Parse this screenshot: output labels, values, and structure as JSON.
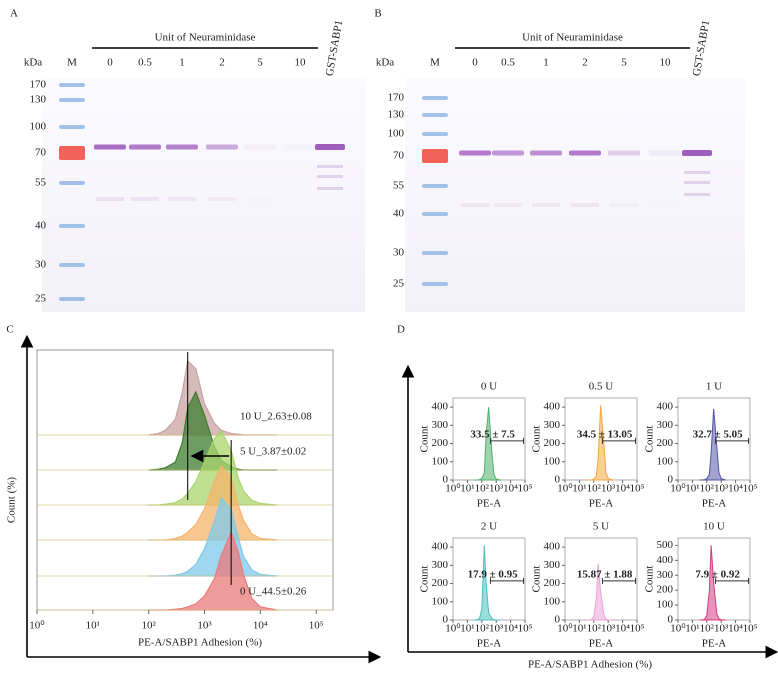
{
  "panels": [
    {
      "label": "A",
      "unit_label": "kDa",
      "marker_label": "M",
      "group_label": "Unit of Neuraminidase",
      "lanes": [
        "0",
        "0.5",
        "1",
        "2",
        "5",
        "10"
      ],
      "control_label": "GST-SABP1",
      "marker_sizes": [
        170,
        130,
        100,
        70,
        55,
        40,
        30,
        25
      ]
    },
    {
      "label": "B",
      "unit_label": "kDa",
      "marker_label": "M",
      "group_label": "Unit of Neuraminidase",
      "lanes": [
        "0",
        "0.5",
        "1",
        "2",
        "5",
        "10"
      ],
      "control_label": "GST-SABP1",
      "marker_sizes": [
        170,
        130,
        100,
        70,
        55,
        40,
        30,
        25
      ]
    }
  ],
  "panel_d": {
    "label": "D",
    "xlabel": "PE-A/SABP1 Adhesion (%)"
  },
  "chart_data": [
    {
      "type": "ridgeline",
      "panel": "C",
      "xlabel": "PE-A/SABP1 Adhesion (%)",
      "ylabel": "Count (%)",
      "xscale": "log",
      "xlim": [
        1,
        200000
      ],
      "xticks": [
        {
          "value": 1,
          "label": "10⁰"
        },
        {
          "value": 10,
          "label": "10¹"
        },
        {
          "value": 100,
          "label": "10²"
        },
        {
          "value": 1000,
          "label": "10³"
        },
        {
          "value": 10000,
          "label": "10⁴"
        },
        {
          "value": 100000,
          "label": "10⁵"
        }
      ],
      "ylim": [
        0,
        100
      ],
      "x": [
        100,
        150,
        200,
        300,
        400,
        500,
        700,
        1000,
        1500,
        2000,
        3000,
        4000,
        5000,
        7000,
        10000,
        20000
      ],
      "series": [
        {
          "name": "10 U_2.63±0.08",
          "color": "#c9a3a3",
          "values": [
            0,
            2,
            6,
            20,
            55,
            95,
            85,
            40,
            15,
            6,
            2,
            1,
            0,
            0,
            0,
            0
          ]
        },
        {
          "name": "5 U_3.87±0.02",
          "color": "#3f7d30",
          "values": [
            0,
            1,
            3,
            10,
            35,
            80,
            100,
            70,
            30,
            12,
            4,
            1,
            0,
            0,
            0,
            0
          ]
        },
        {
          "color": "#a9d46c",
          "values": [
            0,
            0,
            1,
            3,
            8,
            15,
            30,
            55,
            85,
            95,
            70,
            35,
            18,
            6,
            2,
            0
          ]
        },
        {
          "color": "#f6b46c",
          "values": [
            0,
            0,
            0,
            2,
            5,
            10,
            20,
            40,
            75,
            95,
            80,
            45,
            25,
            8,
            2,
            0
          ]
        },
        {
          "color": "#7ec9ea",
          "values": [
            0,
            0,
            0,
            1,
            3,
            6,
            15,
            35,
            70,
            100,
            85,
            50,
            25,
            8,
            2,
            0
          ]
        },
        {
          "name": "0 U_44.5±0.26",
          "color": "#ea7a7a",
          "values": [
            0,
            0,
            0,
            1,
            2,
            4,
            8,
            18,
            40,
            70,
            100,
            75,
            45,
            15,
            4,
            0
          ]
        }
      ]
    },
    {
      "type": "area",
      "title": "0 U",
      "xlabel": "PE-A",
      "ylabel": "Count",
      "xscale": "log",
      "xlim": [
        1,
        100000
      ],
      "xticks": [
        {
          "value": 1,
          "label": "10⁰"
        },
        {
          "value": 10,
          "label": "10¹"
        },
        {
          "value": 100,
          "label": "10²"
        },
        {
          "value": 1000,
          "label": "10³"
        },
        {
          "value": 10000,
          "label": "10⁴"
        },
        {
          "value": 100000,
          "label": "10⁵"
        }
      ],
      "ylim": [
        0,
        450
      ],
      "yticks": [
        0,
        100,
        200,
        300,
        400
      ],
      "x": [
        30,
        50,
        70,
        100,
        150,
        200,
        300,
        500,
        700,
        1000,
        2000
      ],
      "values": [
        0,
        0,
        2,
        8,
        40,
        250,
        400,
        150,
        30,
        5,
        0
      ],
      "color": "#4fb06a",
      "annotation": "33.5 ± 7.5"
    },
    {
      "type": "area",
      "title": "0.5 U",
      "xlabel": "PE-A",
      "ylabel": "Count",
      "xscale": "log",
      "xlim": [
        1,
        100000
      ],
      "xticks": [
        {
          "value": 1,
          "label": "10⁰"
        },
        {
          "value": 10,
          "label": "10¹"
        },
        {
          "value": 100,
          "label": "10²"
        },
        {
          "value": 1000,
          "label": "10³"
        },
        {
          "value": 10000,
          "label": "10⁴"
        },
        {
          "value": 100000,
          "label": "10⁵"
        }
      ],
      "ylim": [
        0,
        450
      ],
      "yticks": [
        0,
        100,
        200,
        300,
        400
      ],
      "x": [
        30,
        50,
        70,
        100,
        150,
        200,
        300,
        500,
        700,
        1000,
        2000
      ],
      "values": [
        0,
        0,
        1,
        5,
        20,
        120,
        410,
        200,
        40,
        8,
        0
      ],
      "color": "#f5a742",
      "annotation": "34.5 ± 13.05"
    },
    {
      "type": "area",
      "title": "1 U",
      "xlabel": "PE-A",
      "ylabel": "Count",
      "xscale": "log",
      "xlim": [
        1,
        100000
      ],
      "xticks": [
        {
          "value": 1,
          "label": "10⁰"
        },
        {
          "value": 10,
          "label": "10¹"
        },
        {
          "value": 100,
          "label": "10²"
        },
        {
          "value": 1000,
          "label": "10³"
        },
        {
          "value": 10000,
          "label": "10⁴"
        },
        {
          "value": 100000,
          "label": "10⁵"
        }
      ],
      "ylim": [
        0,
        450
      ],
      "yticks": [
        0,
        100,
        200,
        300,
        400
      ],
      "x": [
        30,
        50,
        70,
        100,
        150,
        200,
        300,
        500,
        700,
        1000,
        2000
      ],
      "values": [
        0,
        0,
        2,
        8,
        30,
        150,
        390,
        180,
        40,
        8,
        0
      ],
      "color": "#5555a8",
      "annotation": "32.7 ± 5.05"
    },
    {
      "type": "area",
      "title": "2 U",
      "xlabel": "PE-A",
      "ylabel": "Count",
      "xscale": "log",
      "xlim": [
        1,
        100000
      ],
      "xticks": [
        {
          "value": 1,
          "label": "10⁰"
        },
        {
          "value": 10,
          "label": "10¹"
        },
        {
          "value": 100,
          "label": "10²"
        },
        {
          "value": 1000,
          "label": "10³"
        },
        {
          "value": 10000,
          "label": "10⁴"
        },
        {
          "value": 100000,
          "label": "10⁵"
        }
      ],
      "ylim": [
        0,
        450
      ],
      "yticks": [
        0,
        100,
        200,
        300,
        400
      ],
      "x": [
        30,
        50,
        70,
        100,
        150,
        200,
        300,
        500,
        700,
        1000,
        2000
      ],
      "values": [
        0,
        2,
        8,
        60,
        410,
        200,
        40,
        8,
        2,
        0,
        0
      ],
      "color": "#4bbfc0",
      "annotation": "17.9 ± 0.95"
    },
    {
      "type": "area",
      "title": "5 U",
      "xlabel": "PE-A",
      "ylabel": "Count",
      "xscale": "log",
      "xlim": [
        1,
        100000
      ],
      "xticks": [
        {
          "value": 1,
          "label": "10⁰"
        },
        {
          "value": 10,
          "label": "10¹"
        },
        {
          "value": 100,
          "label": "10²"
        },
        {
          "value": 1000,
          "label": "10³"
        },
        {
          "value": 10000,
          "label": "10⁴"
        },
        {
          "value": 100000,
          "label": "10⁵"
        }
      ],
      "ylim": [
        0,
        450
      ],
      "yticks": [
        0,
        100,
        200,
        300,
        400
      ],
      "x": [
        30,
        50,
        70,
        100,
        150,
        200,
        300,
        500,
        700,
        1000,
        2000
      ],
      "values": [
        0,
        0,
        3,
        20,
        120,
        310,
        150,
        30,
        5,
        0,
        0
      ],
      "color": "#e9a3d8",
      "annotation": "15.87 ± 1.88"
    },
    {
      "type": "area",
      "title": "10 U",
      "xlabel": "PE-A",
      "ylabel": "Count",
      "xscale": "log",
      "xlim": [
        1,
        100000
      ],
      "xticks": [
        {
          "value": 1,
          "label": "10⁰"
        },
        {
          "value": 10,
          "label": "10¹"
        },
        {
          "value": 100,
          "label": "10²"
        },
        {
          "value": 1000,
          "label": "10³"
        },
        {
          "value": 10000,
          "label": "10⁴"
        },
        {
          "value": 100000,
          "label": "10⁵"
        }
      ],
      "ylim": [
        0,
        550
      ],
      "yticks": [
        0,
        100,
        200,
        300,
        400,
        500
      ],
      "x": [
        30,
        50,
        70,
        100,
        150,
        200,
        300,
        500,
        700,
        1000,
        2000
      ],
      "values": [
        0,
        0,
        5,
        30,
        200,
        500,
        250,
        40,
        8,
        2,
        0
      ],
      "color": "#d63a7f",
      "annotation": "7.9 ± 0.92"
    }
  ]
}
